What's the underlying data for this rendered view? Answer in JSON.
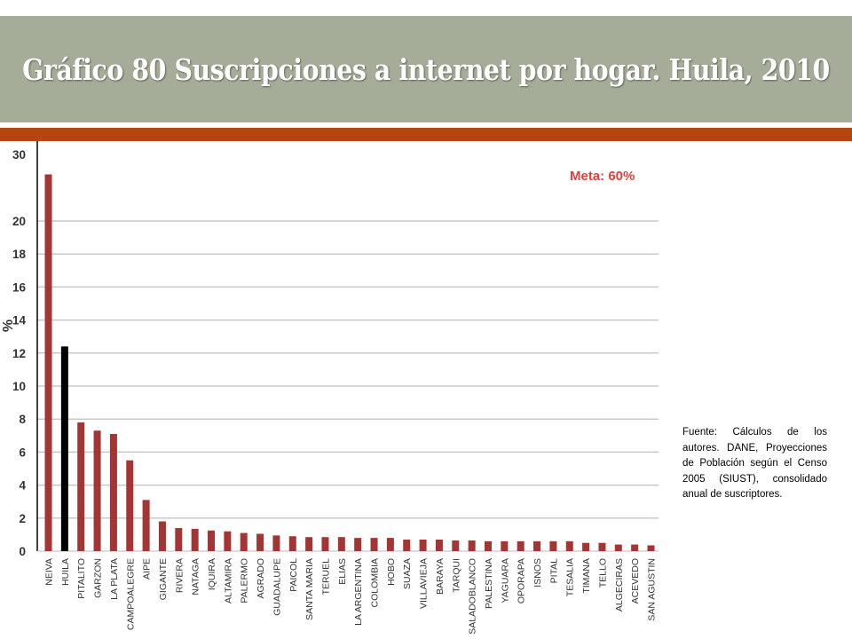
{
  "header": {
    "title": "Gráfico 80 Suscripciones a internet por hogar. Huila, 2010"
  },
  "source_note": "Fuente: Cálculos de los autores. DANE, Proyecciones de Población según el Censo 2005 (SIUST), consolidado anual de suscriptores.",
  "colors": {
    "title_band": "#a5ad98",
    "accent_bar": "#b5460f",
    "bar": "#a33535",
    "highlight_bar": "#000000",
    "meta_label": "#e0403a",
    "grid": "#c8c8c8"
  },
  "chart_data": {
    "type": "bar",
    "ylabel": "%",
    "annotation": "Meta: 60%",
    "yticks": [
      0,
      2,
      4,
      6,
      8,
      10,
      12,
      14,
      16,
      18,
      20,
      30
    ],
    "ylim": [
      0,
      30
    ],
    "axis_break": true,
    "grid": true,
    "highlight_category": "HUILA",
    "categories": [
      "NEIVA",
      "HUILA",
      "PITALITO",
      "GARZON",
      "LA PLATA",
      "CAMPOALEGRE",
      "AIPE",
      "GIGANTE",
      "RIVERA",
      "NATAGA",
      "IQUIRA",
      "ALTAMIRA",
      "PALERMO",
      "AGRADO",
      "GUADALUPE",
      "PAICOL",
      "SANTA MARIA",
      "TERUEL",
      "ELIAS",
      "LA ARGENTINA",
      "COLOMBIA",
      "HOBO",
      "SUAZA",
      "VILLAVIEJA",
      "BARAYA",
      "TARQUI",
      "SALADOBLANCO",
      "PALESTINA",
      "YAGUARA",
      "OPORAPA",
      "ISNOS",
      "PITAL",
      "TESALIA",
      "TIMANA",
      "TELLO",
      "ALGECIRAS",
      "ACEVEDO",
      "SAN AGUSTIN"
    ],
    "values": [
      27.0,
      12.4,
      7.8,
      7.3,
      7.1,
      5.5,
      3.1,
      1.8,
      1.4,
      1.35,
      1.25,
      1.2,
      1.1,
      1.05,
      0.95,
      0.9,
      0.85,
      0.85,
      0.85,
      0.8,
      0.8,
      0.8,
      0.7,
      0.7,
      0.7,
      0.65,
      0.65,
      0.6,
      0.6,
      0.6,
      0.6,
      0.6,
      0.6,
      0.5,
      0.5,
      0.4,
      0.4,
      0.35
    ]
  }
}
